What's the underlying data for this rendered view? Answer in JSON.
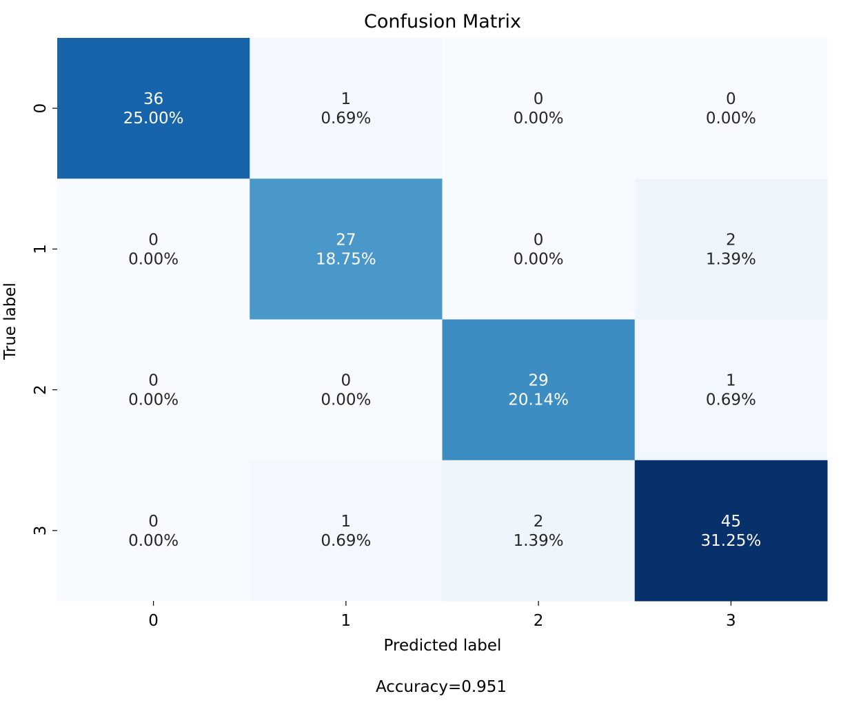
{
  "chart_data": {
    "type": "heatmap",
    "title": "Confusion Matrix",
    "xlabel": "Predicted label",
    "ylabel": "True label",
    "x_categories": [
      "0",
      "1",
      "2",
      "3"
    ],
    "y_categories": [
      "0",
      "1",
      "2",
      "3"
    ],
    "values": [
      [
        36,
        1,
        0,
        0
      ],
      [
        0,
        27,
        0,
        2
      ],
      [
        0,
        0,
        29,
        1
      ],
      [
        0,
        1,
        2,
        45
      ]
    ],
    "percent_labels": [
      [
        "25.00%",
        "0.69%",
        "0.00%",
        "0.00%"
      ],
      [
        "0.00%",
        "18.75%",
        "0.00%",
        "1.39%"
      ],
      [
        "0.00%",
        "0.00%",
        "20.14%",
        "0.69%"
      ],
      [
        "0.00%",
        "0.69%",
        "1.39%",
        "31.25%"
      ]
    ],
    "colormap": "Blues",
    "color_range": [
      0,
      45
    ],
    "colorbar": false,
    "footer": "Accuracy=0.951"
  }
}
